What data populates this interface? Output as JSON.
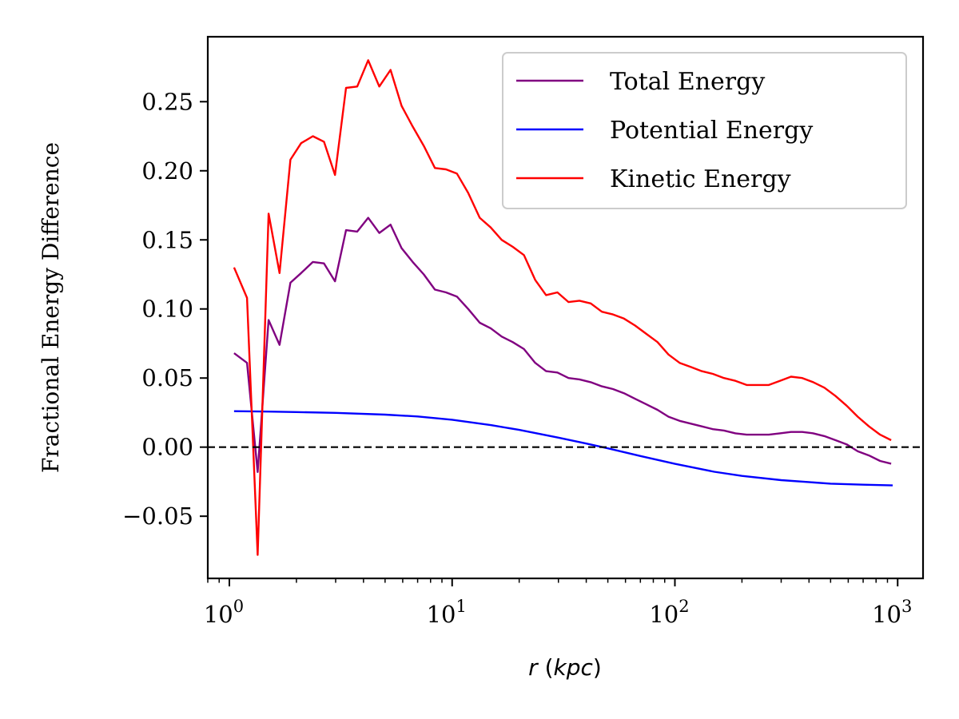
{
  "chart_data": {
    "type": "line",
    "xscale": "log",
    "xlabel": "r (kpc)",
    "ylabel": "Fractional Energy Difference",
    "xlim": [
      0.8,
      1300
    ],
    "ylim": [
      -0.095,
      0.297
    ],
    "xticks": [
      {
        "value": 1,
        "base": "10",
        "exp": "0"
      },
      {
        "value": 10,
        "base": "10",
        "exp": "1"
      },
      {
        "value": 100,
        "base": "10",
        "exp": "2"
      },
      {
        "value": 1000,
        "base": "10",
        "exp": "3"
      }
    ],
    "yticks": [
      {
        "value": -0.05,
        "label": "−0.05"
      },
      {
        "value": 0.0,
        "label": "0.00"
      },
      {
        "value": 0.05,
        "label": "0.05"
      },
      {
        "value": 0.1,
        "label": "0.10"
      },
      {
        "value": 0.15,
        "label": "0.15"
      },
      {
        "value": 0.2,
        "label": "0.20"
      },
      {
        "value": 0.25,
        "label": "0.25"
      }
    ],
    "reference_line": {
      "y": 0.0,
      "style": "dashed",
      "color": "#000000"
    },
    "legend_position": "upper right",
    "grid": false,
    "series": [
      {
        "name": "Total Energy",
        "color": "#800080",
        "x": [
          1.05,
          1.2,
          1.34,
          1.5,
          1.68,
          1.88,
          2.1,
          2.37,
          2.66,
          2.98,
          3.34,
          3.75,
          4.2,
          4.71,
          5.29,
          5.93,
          6.65,
          7.46,
          8.37,
          9.39,
          10.5,
          11.8,
          13.3,
          14.9,
          16.7,
          18.7,
          21.0,
          23.6,
          26.4,
          29.7,
          33.3,
          37.3,
          41.9,
          47.0,
          52.7,
          59.1,
          66.3,
          74.4,
          83.5,
          93.6,
          105,
          118,
          132,
          148,
          166,
          187,
          210,
          235,
          264,
          296,
          332,
          373,
          418,
          469,
          526,
          590,
          662,
          743,
          834,
          935
        ],
        "y": [
          0.068,
          0.061,
          -0.018,
          0.092,
          0.074,
          0.119,
          0.126,
          0.134,
          0.133,
          0.12,
          0.157,
          0.156,
          0.166,
          0.155,
          0.161,
          0.144,
          0.134,
          0.125,
          0.114,
          0.112,
          0.109,
          0.1,
          0.09,
          0.086,
          0.08,
          0.076,
          0.071,
          0.061,
          0.055,
          0.054,
          0.05,
          0.049,
          0.047,
          0.044,
          0.042,
          0.039,
          0.035,
          0.031,
          0.027,
          0.022,
          0.019,
          0.017,
          0.015,
          0.013,
          0.012,
          0.01,
          0.009,
          0.009,
          0.009,
          0.01,
          0.011,
          0.011,
          0.01,
          0.008,
          0.005,
          0.002,
          -0.003,
          -0.006,
          -0.01,
          -0.012
        ]
      },
      {
        "name": "Potential Energy",
        "color": "#0000ff",
        "x": [
          1.05,
          1.5,
          2,
          3,
          5,
          7,
          10,
          15,
          20,
          30,
          40,
          50,
          70,
          100,
          150,
          200,
          300,
          500,
          700,
          950
        ],
        "y": [
          0.026,
          0.0257,
          0.0254,
          0.0248,
          0.0235,
          0.0222,
          0.0198,
          0.0159,
          0.0125,
          0.0069,
          0.0026,
          -0.0009,
          -0.0064,
          -0.0121,
          -0.0178,
          -0.0208,
          -0.0239,
          -0.0264,
          -0.0272,
          -0.0277
        ]
      },
      {
        "name": "Kinetic Energy",
        "color": "#ff0000",
        "x": [
          1.05,
          1.2,
          1.34,
          1.5,
          1.68,
          1.88,
          2.1,
          2.37,
          2.66,
          2.98,
          3.34,
          3.75,
          4.2,
          4.71,
          5.29,
          5.93,
          6.65,
          7.46,
          8.37,
          9.39,
          10.5,
          11.8,
          13.3,
          14.9,
          16.7,
          18.7,
          21.0,
          23.6,
          26.4,
          29.7,
          33.3,
          37.3,
          41.9,
          47.0,
          52.7,
          59.1,
          66.3,
          74.4,
          83.5,
          93.6,
          105,
          118,
          132,
          148,
          166,
          187,
          210,
          235,
          264,
          296,
          332,
          373,
          418,
          469,
          526,
          590,
          662,
          743,
          834,
          935
        ],
        "y": [
          0.13,
          0.108,
          -0.078,
          0.169,
          0.126,
          0.208,
          0.22,
          0.225,
          0.221,
          0.197,
          0.26,
          0.261,
          0.28,
          0.261,
          0.273,
          0.247,
          0.232,
          0.218,
          0.202,
          0.201,
          0.198,
          0.184,
          0.166,
          0.159,
          0.15,
          0.145,
          0.139,
          0.121,
          0.11,
          0.112,
          0.105,
          0.106,
          0.104,
          0.098,
          0.096,
          0.093,
          0.088,
          0.082,
          0.076,
          0.067,
          0.061,
          0.058,
          0.055,
          0.053,
          0.05,
          0.048,
          0.045,
          0.045,
          0.045,
          0.048,
          0.051,
          0.05,
          0.047,
          0.043,
          0.037,
          0.03,
          0.022,
          0.015,
          0.009,
          0.005
        ]
      }
    ]
  }
}
